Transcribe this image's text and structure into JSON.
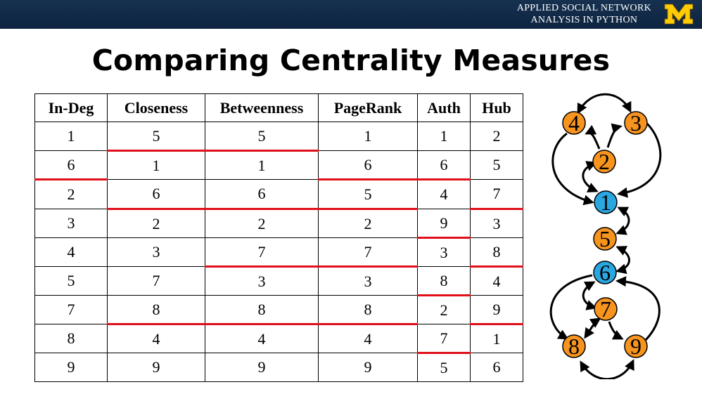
{
  "header": {
    "course_line1": "APPLIED SOCIAL NETWORK",
    "course_line2": "ANALYSIS IN PYTHON",
    "logo_letter": "M",
    "logo_color": "#ffcb05"
  },
  "title": "Comparing Centrality Measures",
  "table": {
    "columns": [
      "In-Deg",
      "Closeness",
      "Betweenness",
      "PageRank",
      "Auth",
      "Hub"
    ],
    "rows": [
      [
        "1",
        "5",
        "5",
        "1",
        "1",
        "2"
      ],
      [
        "6",
        "1",
        "1",
        "6",
        "6",
        "5"
      ],
      [
        "2",
        "6",
        "6",
        "5",
        "4",
        "7"
      ],
      [
        "3",
        "2",
        "2",
        "2",
        "9",
        "3"
      ],
      [
        "4",
        "3",
        "7",
        "7",
        "3",
        "8"
      ],
      [
        "5",
        "7",
        "3",
        "3",
        "8",
        "4"
      ],
      [
        "7",
        "8",
        "8",
        "8",
        "2",
        "9"
      ],
      [
        "8",
        "4",
        "4",
        "4",
        "7",
        "1"
      ],
      [
        "9",
        "9",
        "9",
        "9",
        "5",
        "6"
      ]
    ],
    "separator_after_row": [
      [
        false,
        true,
        true,
        false,
        false,
        false
      ],
      [
        true,
        false,
        false,
        true,
        true,
        false
      ],
      [
        false,
        true,
        true,
        true,
        false,
        true
      ],
      [
        false,
        false,
        false,
        false,
        true,
        false
      ],
      [
        false,
        false,
        true,
        true,
        false,
        true
      ],
      [
        false,
        false,
        false,
        false,
        true,
        false
      ],
      [
        false,
        true,
        true,
        true,
        false,
        true
      ],
      [
        false,
        false,
        false,
        false,
        true,
        false
      ],
      [
        false,
        false,
        false,
        false,
        false,
        false
      ]
    ],
    "separator_color": "#e0101a"
  },
  "graph": {
    "nodes": [
      {
        "id": "4",
        "color": "#f7941d"
      },
      {
        "id": "3",
        "color": "#f7941d"
      },
      {
        "id": "2",
        "color": "#f7941d"
      },
      {
        "id": "1",
        "color": "#2aa6e0"
      },
      {
        "id": "5",
        "color": "#f7941d"
      },
      {
        "id": "6",
        "color": "#2aa6e0"
      },
      {
        "id": "7",
        "color": "#f7941d"
      },
      {
        "id": "8",
        "color": "#f7941d"
      },
      {
        "id": "9",
        "color": "#f7941d"
      }
    ]
  }
}
